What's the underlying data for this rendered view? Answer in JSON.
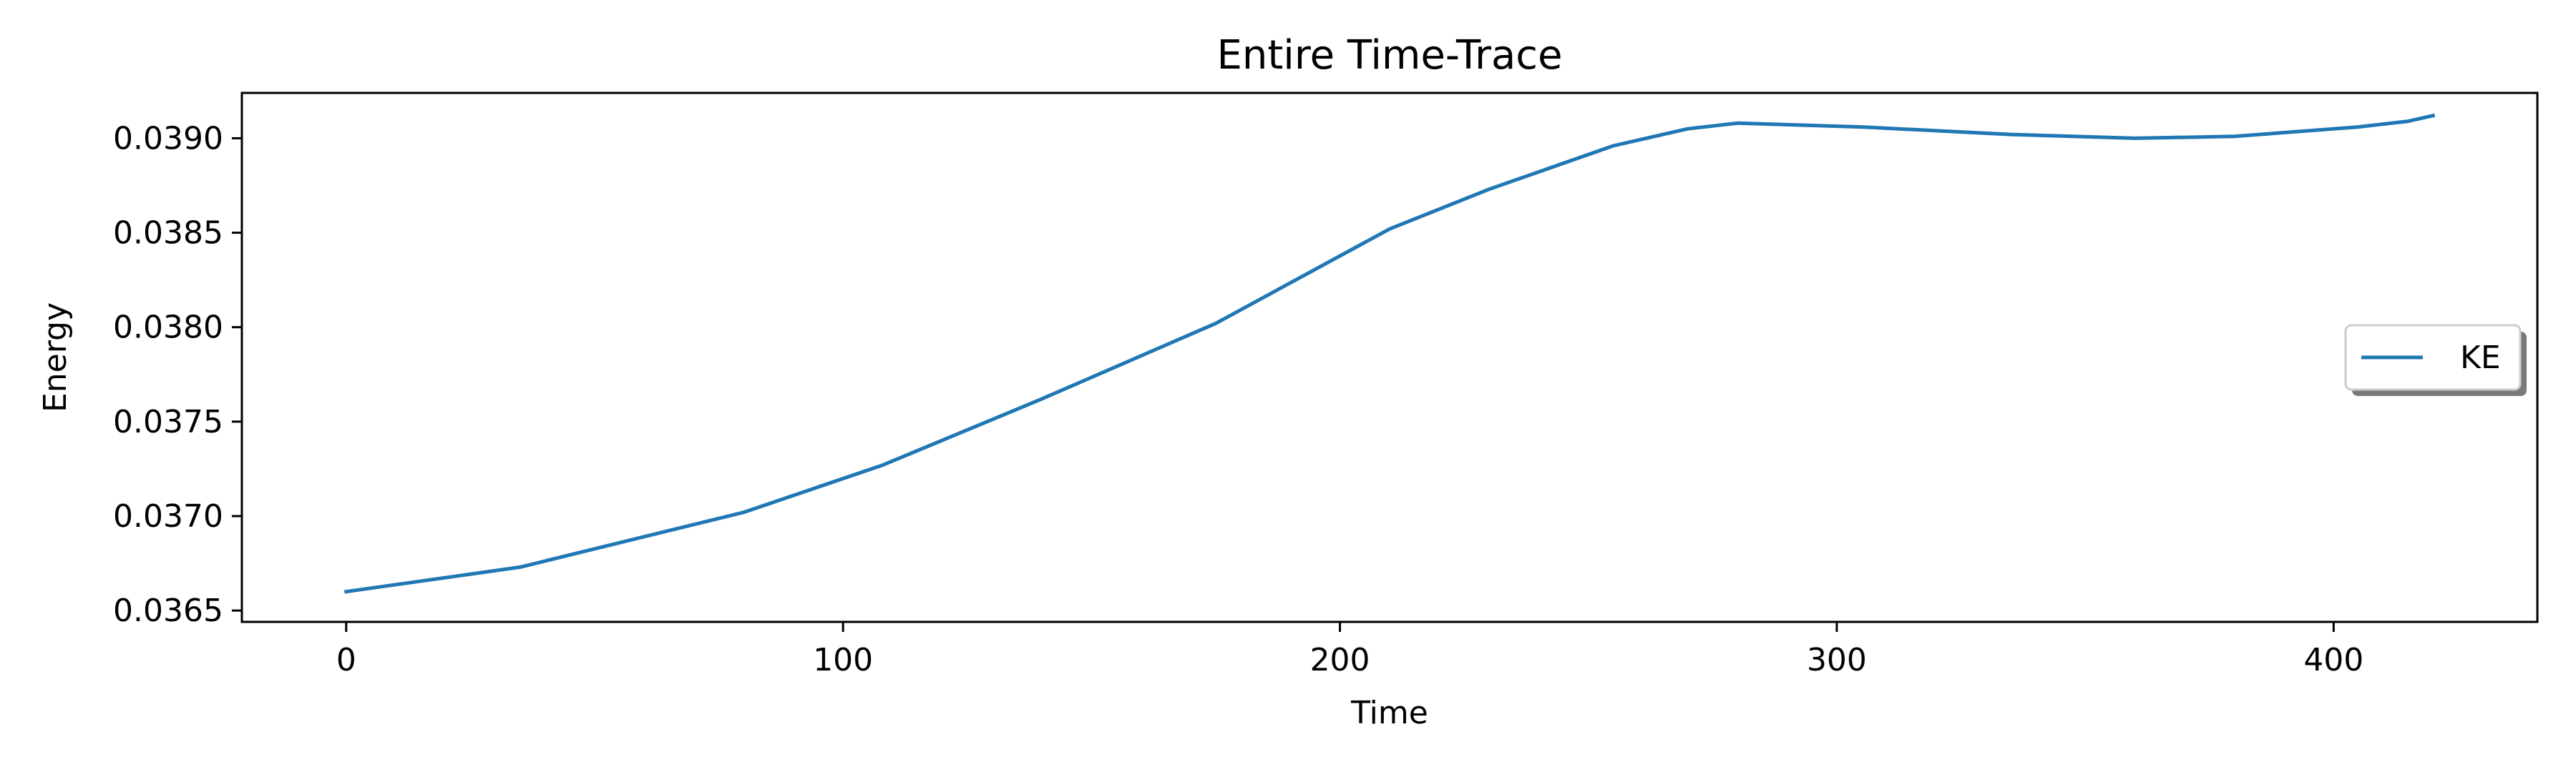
{
  "chart_data": {
    "type": "line",
    "title": "Entire Time-Trace",
    "xlabel": "Time",
    "ylabel": "Energy",
    "xlim": [
      -21,
      441
    ],
    "ylim": [
      0.03644,
      0.03924
    ],
    "xticks": [
      0,
      100,
      200,
      300,
      400
    ],
    "yticks": [
      0.0365,
      0.037,
      0.0375,
      0.038,
      0.0385,
      0.039
    ],
    "ytick_labels": [
      "0.0365",
      "0.0370",
      "0.0375",
      "0.0380",
      "0.0385",
      "0.0390"
    ],
    "grid": false,
    "legend": {
      "position": "center-right",
      "entries": [
        "KE"
      ]
    },
    "series": [
      {
        "name": "KE",
        "color": "#1f77b4",
        "x": [
          0,
          35,
          80,
          108,
          140,
          175,
          210,
          230,
          255,
          270,
          280,
          305,
          335,
          360,
          380,
          405,
          415,
          420
        ],
        "y": [
          0.0366,
          0.03673,
          0.03702,
          0.03727,
          0.03762,
          0.03802,
          0.03852,
          0.03873,
          0.03896,
          0.03905,
          0.03908,
          0.03906,
          0.03902,
          0.039,
          0.03901,
          0.03906,
          0.03909,
          0.03912
        ]
      }
    ]
  }
}
